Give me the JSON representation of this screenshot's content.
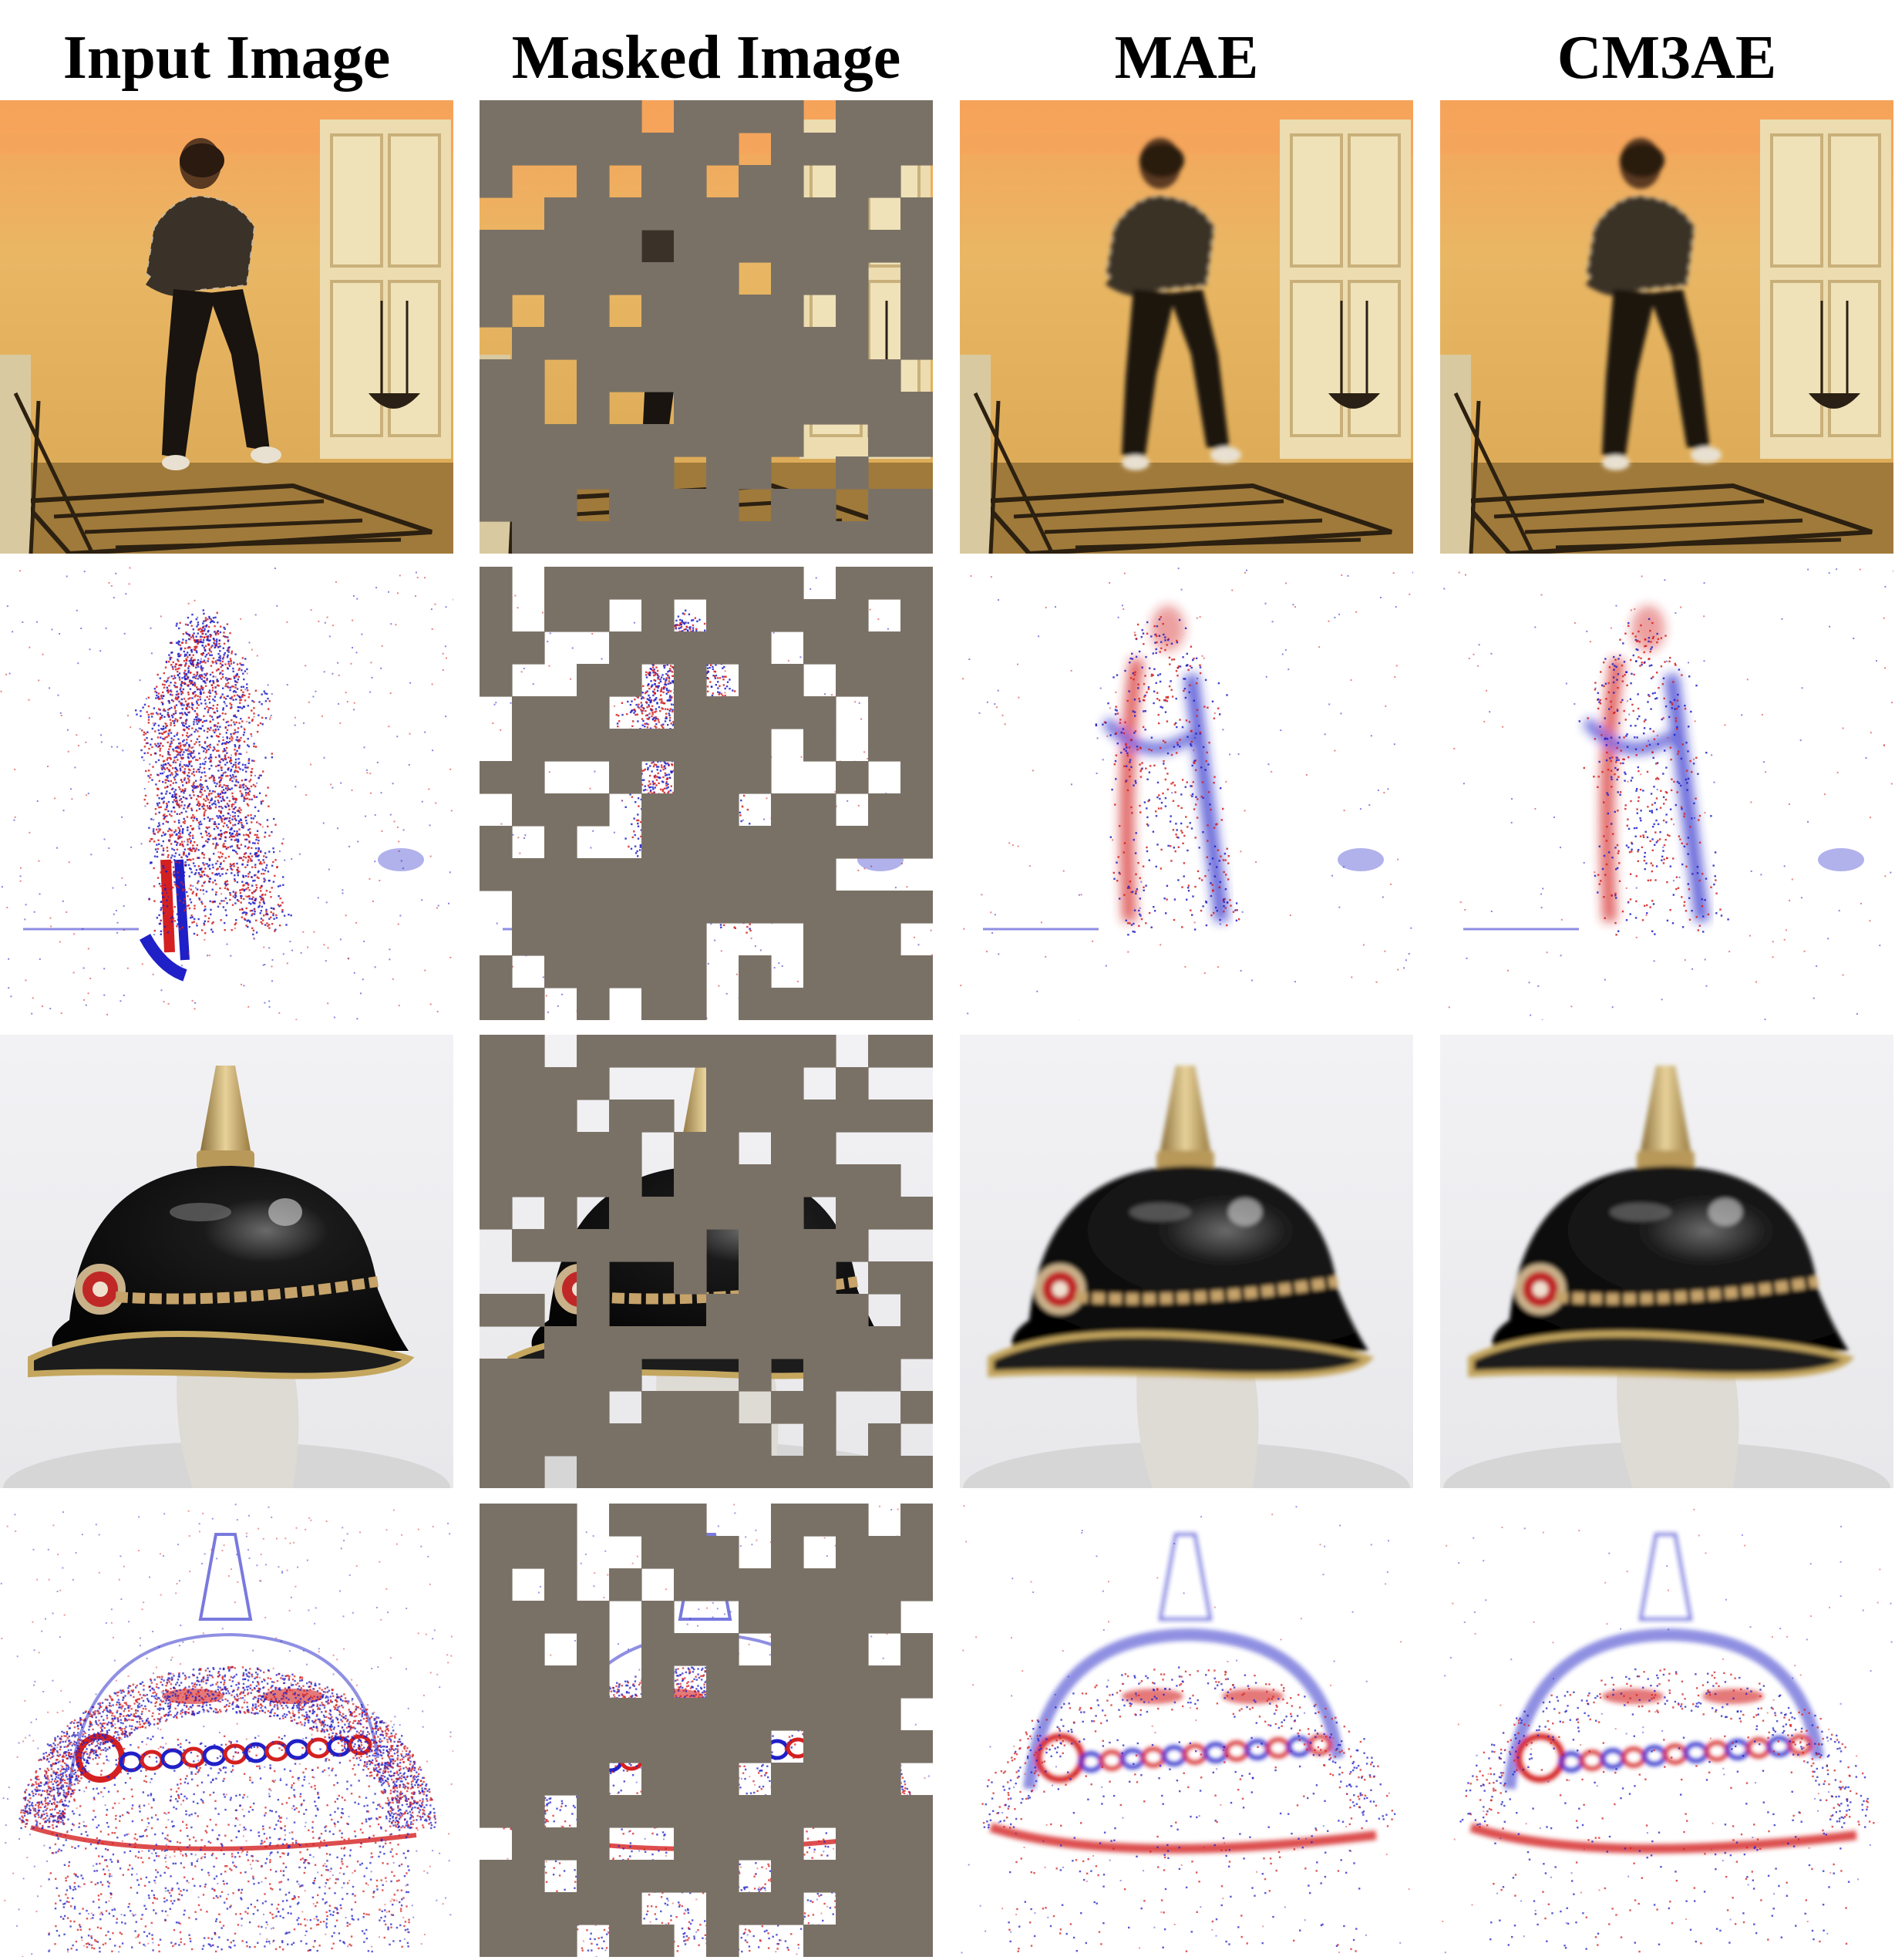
{
  "figure": {
    "columns": [
      {
        "title": "Input Image"
      },
      {
        "title": "Masked Image"
      },
      {
        "title": "MAE"
      },
      {
        "title": "CM3AE"
      }
    ],
    "rows": [
      {
        "subject": "person dancing",
        "modality": "rgb"
      },
      {
        "subject": "person dancing",
        "modality": "event"
      },
      {
        "subject": "pickelhaube helmet",
        "modality": "rgb"
      },
      {
        "subject": "pickelhaube helmet",
        "modality": "event"
      }
    ],
    "mask_color": "#7a7166",
    "event_positive_color": "#d42020",
    "event_negative_color": "#2020c8",
    "room_wall_color": "#e9b764",
    "room_glow_color": "#f6a35a"
  }
}
